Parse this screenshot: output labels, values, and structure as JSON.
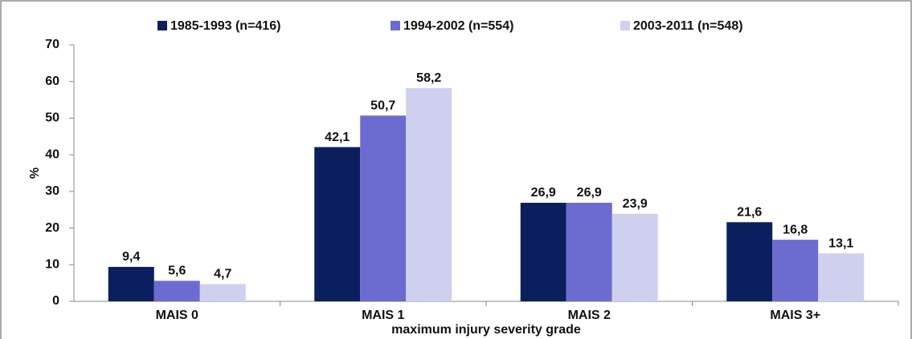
{
  "chart_data": {
    "type": "bar",
    "x_label": "maximum injury severity grade",
    "y_label": "%",
    "categories": [
      "MAIS 0",
      "MAIS 1",
      "MAIS 2",
      "MAIS 3+"
    ],
    "series": [
      {
        "name": "1985-1993 (n=416)",
        "color": "#0b1f5e",
        "values": [
          9.4,
          42.1,
          26.9,
          21.6
        ],
        "value_labels": [
          "9,4",
          "42,1",
          "26,9",
          "21,6"
        ]
      },
      {
        "name": "1994-2002 (n=554)",
        "color": "#6b6bd0",
        "values": [
          5.6,
          50.7,
          26.9,
          16.8
        ],
        "value_labels": [
          "5,6",
          "50,7",
          "26,9",
          "16,8"
        ]
      },
      {
        "name": "2003-2011 (n=548)",
        "color": "#cfd0ef",
        "values": [
          4.7,
          58.2,
          23.9,
          13.1
        ],
        "value_labels": [
          "4,7",
          "58,2",
          "23,9",
          "13,1"
        ]
      }
    ],
    "ylim": [
      0,
      70
    ],
    "yticks": [
      0,
      10,
      20,
      30,
      40,
      50,
      60,
      70
    ],
    "grid": false,
    "legend": "top"
  }
}
